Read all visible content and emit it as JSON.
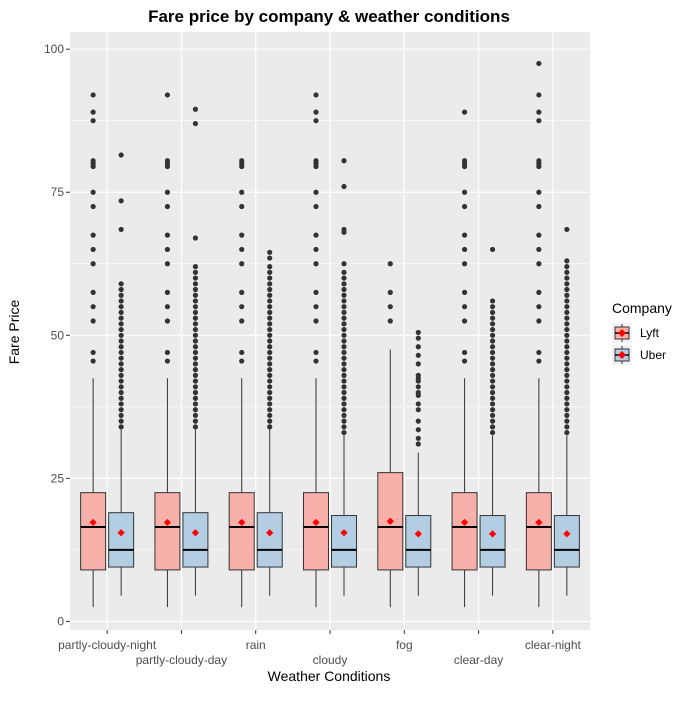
{
  "chart_data": {
    "type": "box",
    "title": "Fare price by company & weather conditions",
    "xlabel": "Weather Conditions",
    "ylabel": "Fare Price",
    "ylim": [
      -1.5,
      103
    ],
    "yticks": [
      0,
      25,
      50,
      75,
      100
    ],
    "grid": true,
    "legend": {
      "title": "Company",
      "position": "right"
    },
    "categories": [
      "partly-cloudy-night",
      "partly-cloudy-day",
      "rain",
      "cloudy",
      "fog",
      "clear-day",
      "clear-night"
    ],
    "series": [
      {
        "name": "Lyft",
        "color": "#F8B0AA",
        "mean_color": "#FF0000",
        "boxes": [
          {
            "low": 2.5,
            "q1": 9,
            "median": 16.5,
            "q3": 22.5,
            "high": 42.5,
            "mean": 17.3,
            "outliers": [
              45.5,
              47,
              52.5,
              55,
              57.5,
              62.5,
              65,
              67.5,
              72.5,
              75,
              79.5,
              80,
              80.5,
              87.5,
              89,
              92
            ]
          },
          {
            "low": 2.5,
            "q1": 9,
            "median": 16.5,
            "q3": 22.5,
            "high": 42.5,
            "mean": 17.3,
            "outliers": [
              45.5,
              47,
              52.5,
              55,
              57.5,
              62.5,
              65,
              67.5,
              72.5,
              75,
              79.5,
              80,
              80.5,
              92
            ]
          },
          {
            "low": 2.5,
            "q1": 9,
            "median": 16.5,
            "q3": 22.5,
            "high": 42.5,
            "mean": 17.3,
            "outliers": [
              45.5,
              47,
              52.5,
              55,
              57.5,
              62.5,
              65,
              67.5,
              72.5,
              75,
              79.5,
              80,
              80.5
            ]
          },
          {
            "low": 2.5,
            "q1": 9,
            "median": 16.5,
            "q3": 22.5,
            "high": 42.5,
            "mean": 17.3,
            "outliers": [
              45.5,
              47,
              52.5,
              55,
              57.5,
              62.5,
              65,
              67.5,
              72.5,
              75,
              79.5,
              80,
              80.5,
              87.5,
              89,
              92
            ]
          },
          {
            "low": 2.5,
            "q1": 9,
            "median": 16.5,
            "q3": 26,
            "high": 47.5,
            "mean": 17.5,
            "outliers": [
              52.5,
              55,
              57.5,
              62.5
            ]
          },
          {
            "low": 2.5,
            "q1": 9,
            "median": 16.5,
            "q3": 22.5,
            "high": 42.5,
            "mean": 17.3,
            "outliers": [
              45.5,
              47,
              52.5,
              55,
              57.5,
              62.5,
              65,
              67.5,
              72.5,
              75,
              79.5,
              80,
              80.5,
              89
            ]
          },
          {
            "low": 2.5,
            "q1": 9,
            "median": 16.5,
            "q3": 22.5,
            "high": 42.5,
            "mean": 17.3,
            "outliers": [
              45.5,
              47,
              52.5,
              55,
              57.5,
              62.5,
              65,
              67.5,
              72.5,
              75,
              79.5,
              80,
              80.5,
              87.5,
              89,
              92,
              97.5
            ]
          }
        ]
      },
      {
        "name": "Uber",
        "color": "#B3CDE3",
        "mean_color": "#FF0000",
        "boxes": [
          {
            "low": 4.5,
            "q1": 9.5,
            "median": 12.5,
            "q3": 19,
            "high": 33.5,
            "mean": 15.5,
            "outliers": [
              34,
              35,
              36,
              37,
              38,
              39,
              40,
              41,
              42,
              43,
              44,
              45,
              46,
              47,
              48,
              49,
              50,
              51,
              52,
              53,
              54,
              55,
              56,
              57,
              58,
              59,
              68.5,
              73.5,
              81.5
            ]
          },
          {
            "low": 4.5,
            "q1": 9.5,
            "median": 12.5,
            "q3": 19,
            "high": 33.5,
            "mean": 15.5,
            "outliers": [
              34,
              35,
              36,
              37,
              38,
              39,
              40,
              41,
              42,
              43,
              44,
              45,
              46,
              47,
              48,
              49,
              50,
              51,
              52,
              53,
              54,
              55,
              56,
              57,
              58,
              59,
              60,
              61,
              62,
              67,
              87,
              89.5
            ]
          },
          {
            "low": 4.5,
            "q1": 9.5,
            "median": 12.5,
            "q3": 19,
            "high": 33.5,
            "mean": 15.5,
            "outliers": [
              34,
              35,
              36,
              37,
              38,
              39,
              40,
              41,
              42,
              43,
              44,
              45,
              46,
              47,
              48,
              49,
              50,
              51,
              52,
              53,
              54,
              55,
              56,
              57,
              58,
              59,
              60,
              61,
              62,
              63.5,
              64.5
            ]
          },
          {
            "low": 4.5,
            "q1": 9.5,
            "median": 12.5,
            "q3": 18.5,
            "high": 32.5,
            "mean": 15.5,
            "outliers": [
              33,
              34,
              35,
              36,
              37,
              38,
              39,
              40,
              41,
              42,
              43,
              44,
              45,
              46,
              47,
              48,
              49,
              50,
              51,
              52,
              53,
              54,
              55,
              56,
              57,
              58,
              59,
              60,
              61,
              62.5,
              68,
              68.5,
              76,
              80.5
            ]
          },
          {
            "low": 4.5,
            "q1": 9.5,
            "median": 12.5,
            "q3": 18.5,
            "high": 29.5,
            "mean": 15.3,
            "outliers": [
              31,
              32,
              33.5,
              35,
              37,
              38,
              39.5,
              40,
              41,
              42,
              42.5,
              43,
              45,
              46.5,
              48,
              49.5,
              50.5
            ]
          },
          {
            "low": 4.5,
            "q1": 9.5,
            "median": 12.5,
            "q3": 18.5,
            "high": 32.5,
            "mean": 15.3,
            "outliers": [
              33,
              34,
              35,
              36,
              37,
              38,
              39,
              40,
              41,
              42,
              43,
              44,
              45,
              46,
              47,
              48,
              49,
              50,
              51,
              52,
              53,
              54,
              55,
              56,
              65
            ]
          },
          {
            "low": 4.5,
            "q1": 9.5,
            "median": 12.5,
            "q3": 18.5,
            "high": 32.5,
            "mean": 15.3,
            "outliers": [
              33,
              34,
              35,
              36,
              37,
              38,
              39,
              40,
              41,
              42,
              43,
              44,
              45,
              46,
              47,
              48,
              49,
              50,
              51,
              52,
              53,
              54,
              55,
              56,
              57,
              58,
              59,
              60,
              61,
              62,
              63,
              68.5
            ]
          }
        ]
      }
    ]
  }
}
